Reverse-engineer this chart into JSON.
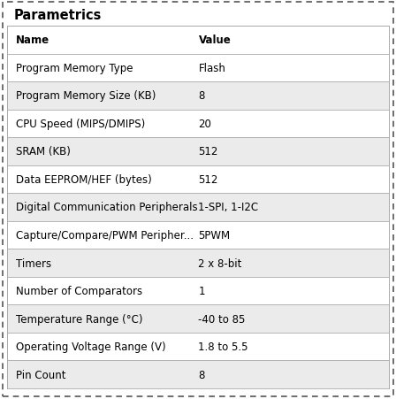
{
  "title": "Parametrics",
  "header": [
    "Name",
    "Value"
  ],
  "rows": [
    [
      "Program Memory Type",
      "Flash"
    ],
    [
      "Program Memory Size (KB)",
      "8"
    ],
    [
      "CPU Speed (MIPS/DMIPS)",
      "20"
    ],
    [
      "SRAM (KB)",
      "512"
    ],
    [
      "Data EEPROM/HEF (bytes)",
      "512"
    ],
    [
      "Digital Communication Peripherals",
      "1-SPI, 1-I2C"
    ],
    [
      "Capture/Compare/PWM Peripher...",
      "5PWM"
    ],
    [
      "Timers",
      "2 x 8-bit"
    ],
    [
      "Number of Comparators",
      "1"
    ],
    [
      "Temperature Range (°C)",
      "-40 to 85"
    ],
    [
      "Operating Voltage Range (V)",
      "1.8 to 5.5"
    ],
    [
      "Pin Count",
      "8"
    ]
  ],
  "bg_color_odd": "#ebebeb",
  "bg_color_even": "#ffffff",
  "header_bg": "#ffffff",
  "title_color": "#000000",
  "text_color": "#000000",
  "border_color": "#aaaaaa",
  "outer_border_color": "#555555",
  "col_split": 0.478,
  "title_fontsize": 10.5,
  "header_fontsize": 8.5,
  "row_fontsize": 8.5
}
